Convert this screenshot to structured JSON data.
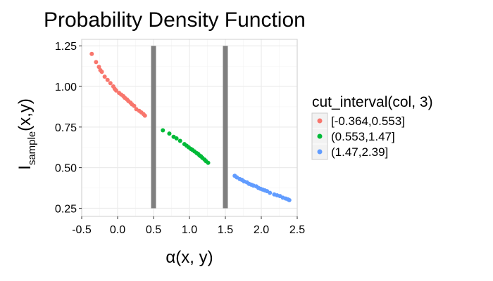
{
  "chart_data": {
    "type": "scatter",
    "title": "Probability Density Function",
    "xlabel": "α(x, y)",
    "ylabel": {
      "base": "I",
      "subscript": "sample",
      "suffix": "(x,y)"
    },
    "xlim": [
      -0.5,
      2.5
    ],
    "ylim": [
      0.2,
      1.29
    ],
    "x_ticks": [
      -0.5,
      0.0,
      0.5,
      1.0,
      1.5,
      2.0,
      2.5
    ],
    "x_tick_labels": [
      "-0.5",
      "0.0",
      "0.5",
      "1.0",
      "1.5",
      "2.0",
      "2.5"
    ],
    "y_ticks": [
      0.25,
      0.5,
      0.75,
      1.0,
      1.25
    ],
    "y_tick_labels": [
      "0.25",
      "0.50",
      "0.75",
      "1.00",
      "1.25"
    ],
    "grid": true,
    "background": "#ffffff",
    "grid_color": "#ebebeb",
    "vertical_bands": [
      {
        "x": 0.5,
        "y_from": 0.25,
        "y_to": 1.25,
        "color": "#7f7f7f"
      },
      {
        "x": 1.5,
        "y_from": 0.25,
        "y_to": 1.25,
        "color": "#7f7f7f"
      }
    ],
    "legend": {
      "title": "cut_interval(col, 3)",
      "position": "right"
    },
    "series": [
      {
        "name": "[-0.364,0.553]",
        "color": "#F8766D",
        "points": [
          [
            -0.36,
            1.2
          ],
          [
            -0.3,
            1.15
          ],
          [
            -0.26,
            1.12
          ],
          [
            -0.24,
            1.1
          ],
          [
            -0.22,
            1.09
          ],
          [
            -0.18,
            1.06
          ],
          [
            -0.14,
            1.04
          ],
          [
            -0.1,
            1.02
          ],
          [
            -0.06,
            1.0
          ],
          [
            -0.04,
            0.985
          ],
          [
            -0.02,
            0.975
          ],
          [
            0.02,
            0.96
          ],
          [
            0.05,
            0.95
          ],
          [
            0.08,
            0.94
          ],
          [
            0.1,
            0.93
          ],
          [
            0.13,
            0.92
          ],
          [
            0.15,
            0.91
          ],
          [
            0.18,
            0.9
          ],
          [
            0.2,
            0.89
          ],
          [
            0.23,
            0.88
          ],
          [
            0.26,
            0.86
          ],
          [
            0.3,
            0.85
          ],
          [
            0.33,
            0.84
          ],
          [
            0.36,
            0.83
          ],
          [
            0.38,
            0.82
          ]
        ]
      },
      {
        "name": "(0.553,1.47]",
        "color": "#00BA38",
        "points": [
          [
            0.63,
            0.73
          ],
          [
            0.72,
            0.71
          ],
          [
            0.78,
            0.69
          ],
          [
            0.82,
            0.68
          ],
          [
            0.87,
            0.665
          ],
          [
            0.93,
            0.645
          ],
          [
            0.96,
            0.635
          ],
          [
            0.99,
            0.625
          ],
          [
            1.02,
            0.615
          ],
          [
            1.04,
            0.61
          ],
          [
            1.07,
            0.6
          ],
          [
            1.1,
            0.59
          ],
          [
            1.12,
            0.585
          ],
          [
            1.14,
            0.575
          ],
          [
            1.16,
            0.57
          ],
          [
            1.18,
            0.56
          ],
          [
            1.21,
            0.55
          ],
          [
            1.23,
            0.54
          ],
          [
            1.26,
            0.53
          ]
        ]
      },
      {
        "name": "(1.47,2.39]",
        "color": "#619CFF",
        "points": [
          [
            1.63,
            0.45
          ],
          [
            1.66,
            0.44
          ],
          [
            1.7,
            0.43
          ],
          [
            1.73,
            0.425
          ],
          [
            1.76,
            0.415
          ],
          [
            1.8,
            0.41
          ],
          [
            1.83,
            0.4
          ],
          [
            1.86,
            0.395
          ],
          [
            1.89,
            0.39
          ],
          [
            1.93,
            0.385
          ],
          [
            1.96,
            0.375
          ],
          [
            1.99,
            0.37
          ],
          [
            2.02,
            0.365
          ],
          [
            2.05,
            0.36
          ],
          [
            2.08,
            0.355
          ],
          [
            2.12,
            0.345
          ],
          [
            2.18,
            0.335
          ],
          [
            2.22,
            0.33
          ],
          [
            2.26,
            0.325
          ],
          [
            2.3,
            0.315
          ],
          [
            2.34,
            0.31
          ],
          [
            2.37,
            0.305
          ],
          [
            2.39,
            0.3
          ]
        ]
      }
    ]
  }
}
